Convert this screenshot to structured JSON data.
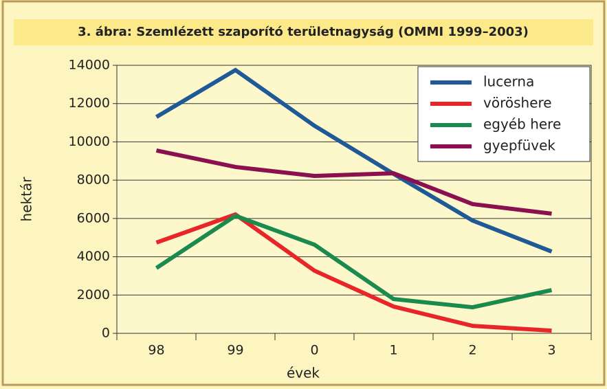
{
  "chart_data": {
    "type": "line",
    "title": "3. ábra: Szemlézett szaporító területnagyság (OMMI 1999–2003)",
    "xlabel": "évek",
    "ylabel": "hektár",
    "categories": [
      "98",
      "99",
      "0",
      "1",
      "2",
      "3"
    ],
    "series": [
      {
        "name": "lucerna",
        "color": "#1f5a96",
        "values": [
          11300,
          13750,
          10840,
          8330,
          5890,
          4270
        ]
      },
      {
        "name": "vöröshere",
        "color": "#e8262a",
        "values": [
          4740,
          6210,
          3270,
          1400,
          390,
          140
        ]
      },
      {
        "name": "egyéb here",
        "color": "#1a8a4e",
        "values": [
          3410,
          6140,
          4630,
          1790,
          1360,
          2260
        ]
      },
      {
        "name": "gyepfüvek",
        "color": "#8a1050",
        "values": [
          9550,
          8690,
          8220,
          8360,
          6750,
          6250
        ]
      }
    ],
    "ylim": [
      0,
      14000
    ],
    "yticks": [
      0,
      2000,
      4000,
      6000,
      8000,
      10000,
      12000,
      14000
    ],
    "grid": true,
    "legend": "upper right"
  }
}
